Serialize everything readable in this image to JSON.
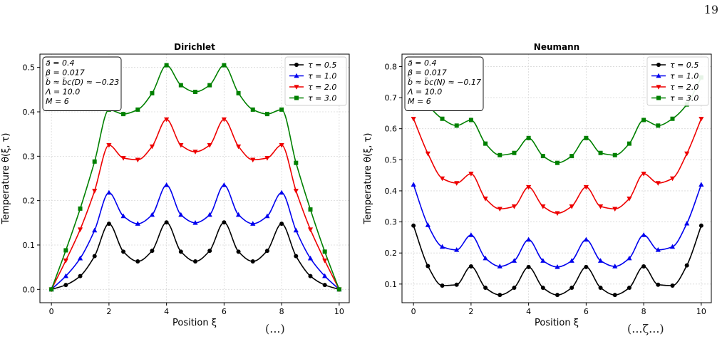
{
  "page_number": "19",
  "caption_fragments": [
    "(...)",
    "(...ζ...)"
  ],
  "chart_data": [
    {
      "type": "line",
      "title": "Dirichlet",
      "xlabel": "Position ξ",
      "ylabel": "Temperature θ(ξ, τ)",
      "xlim": [
        -0.4,
        10.35
      ],
      "ylim": [
        -0.03,
        0.53
      ],
      "xticks": [
        0,
        2,
        4,
        6,
        8,
        10
      ],
      "yticks": [
        0.0,
        0.1,
        0.2,
        0.3,
        0.4,
        0.5
      ],
      "grid": true,
      "legend_position": "top-right",
      "info_box": [
        "ã = 0.4",
        "β = 0.017",
        "b̃ ≈ b̃c(D) ≈ −0.23",
        "Λ = 10.0",
        "M = 6"
      ],
      "x": [
        0,
        0.5,
        1,
        1.5,
        2,
        2.5,
        3,
        3.5,
        4,
        4.5,
        5,
        5.5,
        6,
        6.5,
        7,
        7.5,
        8,
        8.5,
        9,
        9.5,
        10
      ],
      "series": [
        {
          "name": "τ = 0.5",
          "color": "#000000",
          "marker": "circle",
          "values": [
            0.0,
            0.01,
            0.03,
            0.075,
            0.148,
            0.085,
            0.063,
            0.087,
            0.151,
            0.085,
            0.063,
            0.087,
            0.151,
            0.085,
            0.063,
            0.087,
            0.148,
            0.075,
            0.03,
            0.01,
            0.0
          ]
        },
        {
          "name": "τ = 1.0",
          "color": "#0000ee",
          "marker": "triangle-up",
          "values": [
            0.0,
            0.03,
            0.07,
            0.133,
            0.218,
            0.165,
            0.148,
            0.168,
            0.235,
            0.168,
            0.15,
            0.168,
            0.235,
            0.168,
            0.148,
            0.165,
            0.218,
            0.133,
            0.07,
            0.03,
            0.0
          ]
        },
        {
          "name": "τ = 2.0",
          "color": "#ee0000",
          "marker": "triangle-down",
          "values": [
            0.0,
            0.065,
            0.135,
            0.222,
            0.325,
            0.296,
            0.292,
            0.322,
            0.383,
            0.325,
            0.31,
            0.325,
            0.383,
            0.322,
            0.292,
            0.296,
            0.325,
            0.222,
            0.135,
            0.065,
            0.0
          ]
        },
        {
          "name": "τ = 3.0",
          "color": "#008000",
          "marker": "square",
          "values": [
            0.0,
            0.088,
            0.182,
            0.288,
            0.405,
            0.395,
            0.405,
            0.442,
            0.505,
            0.46,
            0.445,
            0.46,
            0.505,
            0.442,
            0.405,
            0.395,
            0.405,
            0.285,
            0.18,
            0.085,
            0.0
          ]
        }
      ]
    },
    {
      "type": "line",
      "title": "Neumann",
      "xlabel": "Position ξ",
      "ylabel": "Temperature θ(ξ, τ)",
      "xlim": [
        -0.4,
        10.35
      ],
      "ylim": [
        0.04,
        0.84
      ],
      "xticks": [
        0,
        2,
        4,
        6,
        8,
        10
      ],
      "yticks": [
        0.1,
        0.2,
        0.3,
        0.4,
        0.5,
        0.6,
        0.7,
        0.8
      ],
      "grid": true,
      "legend_position": "top-right",
      "info_box": [
        "ã = 0.4",
        "β = 0.017",
        "b̃ ≈ b̃c(N) ≈ −0.17",
        "Λ = 10.0",
        "M = 6"
      ],
      "x": [
        0,
        0.5,
        1,
        1.5,
        2,
        2.5,
        3,
        3.5,
        4,
        4.5,
        5,
        5.5,
        6,
        6.5,
        7,
        7.5,
        8,
        8.5,
        9,
        9.5,
        10
      ],
      "series": [
        {
          "name": "τ = 0.5",
          "color": "#000000",
          "marker": "circle",
          "values": [
            0.288,
            0.158,
            0.095,
            0.098,
            0.157,
            0.088,
            0.065,
            0.088,
            0.155,
            0.088,
            0.065,
            0.088,
            0.155,
            0.088,
            0.065,
            0.088,
            0.157,
            0.098,
            0.095,
            0.16,
            0.288
          ]
        },
        {
          "name": "τ = 1.0",
          "color": "#0000ee",
          "marker": "triangle-up",
          "values": [
            0.42,
            0.29,
            0.22,
            0.21,
            0.258,
            0.183,
            0.157,
            0.175,
            0.243,
            0.175,
            0.155,
            0.175,
            0.243,
            0.175,
            0.157,
            0.183,
            0.258,
            0.21,
            0.22,
            0.295,
            0.42
          ]
        },
        {
          "name": "τ = 2.0",
          "color": "#ee0000",
          "marker": "triangle-down",
          "values": [
            0.632,
            0.52,
            0.44,
            0.425,
            0.455,
            0.375,
            0.342,
            0.35,
            0.412,
            0.35,
            0.328,
            0.35,
            0.412,
            0.35,
            0.342,
            0.375,
            0.455,
            0.425,
            0.44,
            0.52,
            0.632
          ]
        },
        {
          "name": "τ = 3.0",
          "color": "#008000",
          "marker": "square",
          "values": [
            0.765,
            0.678,
            0.632,
            0.61,
            0.628,
            0.552,
            0.515,
            0.522,
            0.57,
            0.512,
            0.49,
            0.512,
            0.57,
            0.522,
            0.515,
            0.552,
            0.628,
            0.61,
            0.632,
            0.678,
            0.765
          ]
        }
      ]
    }
  ]
}
